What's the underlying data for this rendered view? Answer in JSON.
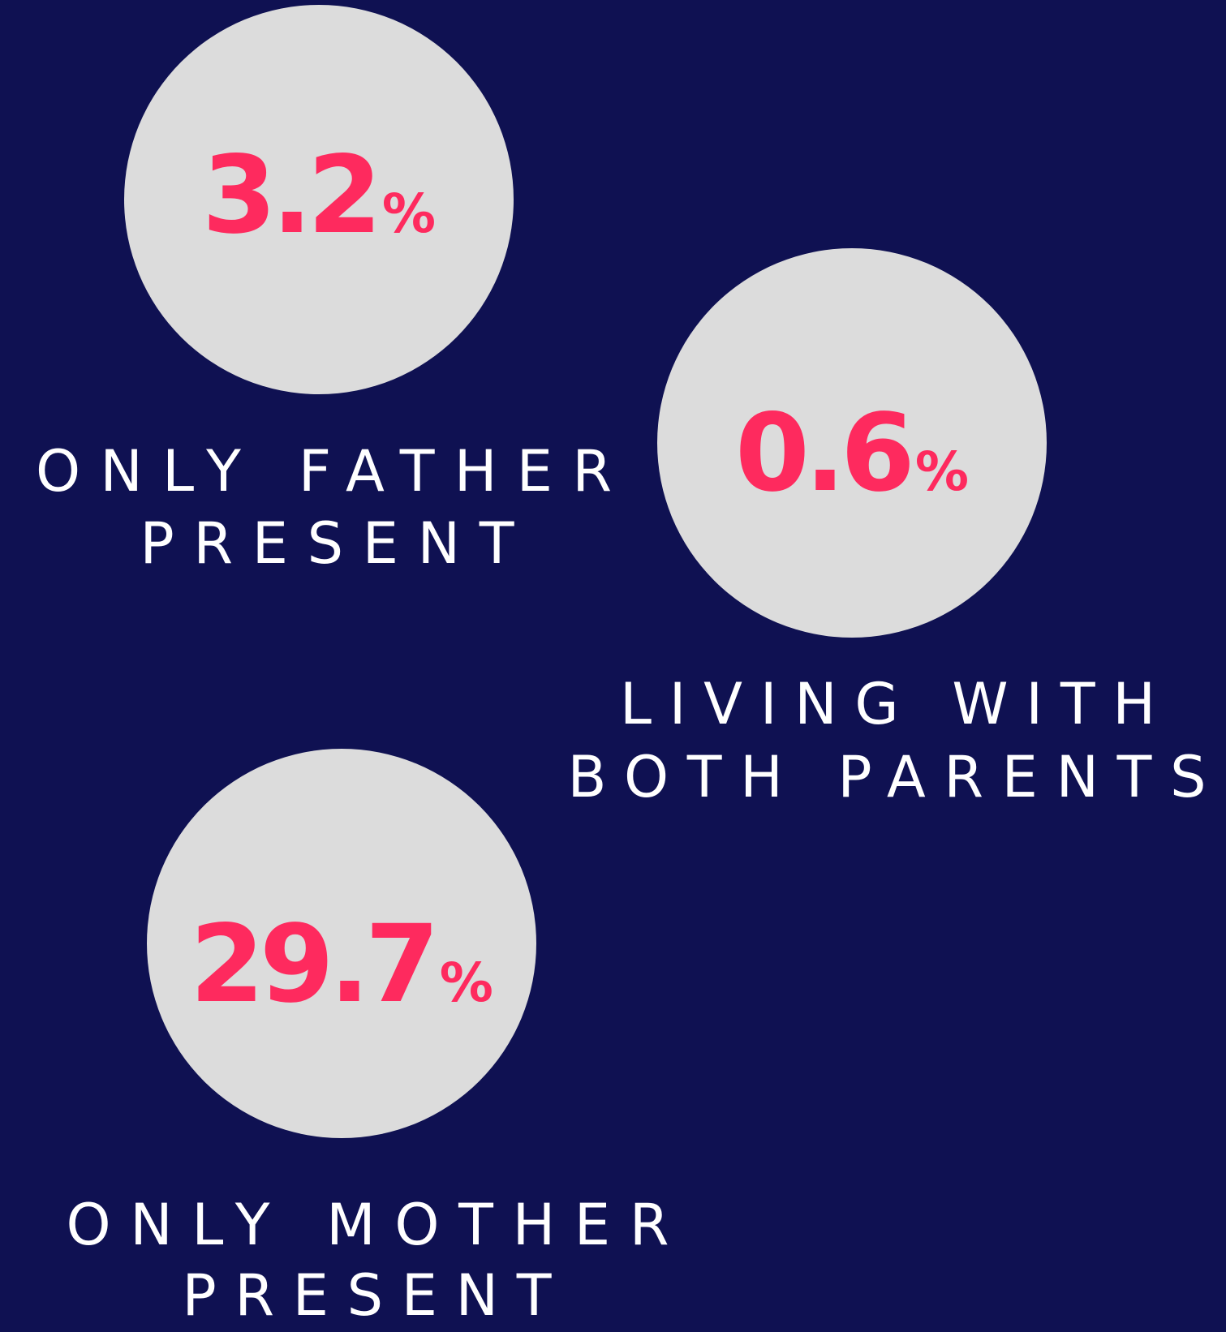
{
  "items": [
    {
      "value": "3.2",
      "unit": "%",
      "label": [
        "ONLY FATHER",
        "PRESENT"
      ]
    },
    {
      "value": "0.6",
      "unit": "%",
      "label": [
        "LIVING WITH",
        "BOTH PARENTS"
      ]
    },
    {
      "value": "29.7",
      "unit": "%",
      "label": [
        "ONLY MOTHER",
        "PRESENT"
      ]
    }
  ]
}
